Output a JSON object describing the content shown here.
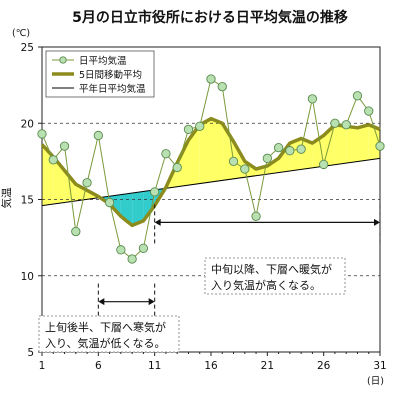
{
  "chart_data": {
    "type": "line",
    "title": "5月の日立市役所における日平均気温の推移",
    "ylabel": "気温",
    "yunit": "(℃)",
    "xunit": "(日)",
    "xlim": [
      1,
      31
    ],
    "ylim": [
      5,
      25
    ],
    "xticks": [
      1,
      6,
      11,
      16,
      21,
      26,
      31
    ],
    "yticks": [
      5,
      10,
      15,
      20,
      25
    ],
    "grid": "horizontal-dashed",
    "legend_position": "top-left",
    "series": [
      {
        "name": "日平均気温",
        "style": "line-with-circle-markers",
        "color": "#7a9a3a",
        "marker_color": "#b8e0b0",
        "x": [
          1,
          2,
          3,
          4,
          5,
          6,
          7,
          8,
          9,
          10,
          11,
          12,
          13,
          14,
          15,
          16,
          17,
          18,
          19,
          20,
          21,
          22,
          23,
          24,
          25,
          26,
          27,
          28,
          29,
          30,
          31
        ],
        "values": [
          19.3,
          17.6,
          18.5,
          12.9,
          16.1,
          19.2,
          14.8,
          11.7,
          11.1,
          11.8,
          15.5,
          18.0,
          17.1,
          19.6,
          19.8,
          22.9,
          22.4,
          17.5,
          17.0,
          13.9,
          17.7,
          18.4,
          18.2,
          18.3,
          21.6,
          17.3,
          20.0,
          19.9,
          21.8,
          20.8,
          18.5
        ]
      },
      {
        "name": "5日間移動平均",
        "style": "thick-line",
        "color": "#8c8c1e",
        "x": [
          1,
          2,
          3,
          4,
          5,
          6,
          7,
          8,
          9,
          10,
          11,
          12,
          13,
          14,
          15,
          16,
          17,
          18,
          19,
          20,
          21,
          22,
          23,
          24,
          25,
          26,
          27,
          28,
          29,
          30,
          31
        ],
        "values": [
          18.6,
          17.8,
          16.9,
          16.0,
          15.6,
          15.2,
          14.7,
          13.9,
          13.3,
          13.6,
          14.6,
          15.8,
          17.4,
          18.9,
          19.9,
          20.3,
          20.0,
          18.8,
          17.5,
          17.0,
          17.2,
          17.7,
          18.7,
          19.0,
          18.7,
          19.2,
          19.9,
          19.8,
          19.7,
          19.9,
          19.6
        ]
      },
      {
        "name": "平年日平均気温",
        "style": "thin-line",
        "color": "#000000",
        "x": [
          1,
          31
        ],
        "values": [
          14.6,
          17.7
        ]
      }
    ],
    "fills": [
      {
        "meaning": "warmer-than-normal",
        "color": "#ffff66"
      },
      {
        "meaning": "colder-than-normal",
        "color": "#33cccc"
      }
    ],
    "annotations": [
      {
        "lines": [
          "中旬以降、下層へ暖気が",
          "入り気温が高くなる。"
        ],
        "arrow_from": 11,
        "arrow_to": 31,
        "arrow_value": 13.5
      },
      {
        "lines": [
          "上旬後半、下層へ寒気が",
          "入り、気温が低くなる。"
        ],
        "arrow_from": 6,
        "arrow_to": 11,
        "arrow_value": 8.3
      }
    ]
  }
}
